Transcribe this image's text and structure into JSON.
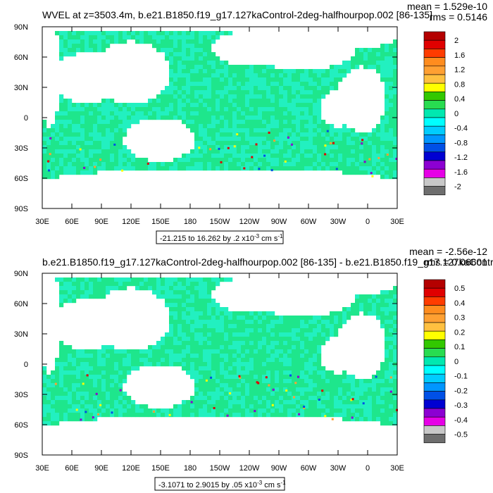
{
  "chart_data": [
    {
      "type": "heatmap",
      "title": "WVEL at z=3503.4m, b.e21.B1850.f19_g17.127kaControl-2deg-halfhourpop.002 [86-135]",
      "stats": {
        "mean": "mean = 1.529e-10",
        "rms": "rms = 0.5146"
      },
      "x_ticks": [
        "30E",
        "60E",
        "90E",
        "120E",
        "150E",
        "180",
        "150W",
        "120W",
        "90W",
        "60W",
        "30W",
        "0",
        "30E"
      ],
      "y_ticks": [
        "90N",
        "60N",
        "30N",
        "0",
        "30S",
        "60S",
        "90S"
      ],
      "range_label": {
        "text": "-21.215 to 16.262 by .2 x10",
        "exp": "-3",
        "unit": " cm s",
        "unit_exp": "-1"
      },
      "colorbar_labels": [
        "2",
        "1.6",
        "1.2",
        "0.8",
        "0.4",
        "0",
        "-0.4",
        "-0.8",
        "-1.2",
        "-1.6",
        "-2"
      ]
    },
    {
      "type": "heatmap",
      "title": "b.e21.B1850.f19_g17.127kaControl-2deg-halfhourpop.002 [86-135] - b.e21.B1850.f19_g17.127kaControl",
      "stats": {
        "mean": "mean = -2.56e-12",
        "rms": "rms = 0.06601"
      },
      "x_ticks": [
        "30E",
        "60E",
        "90E",
        "120E",
        "150E",
        "180",
        "150W",
        "120W",
        "90W",
        "60W",
        "30W",
        "0",
        "30E"
      ],
      "y_ticks": [
        "90N",
        "60N",
        "30N",
        "0",
        "30S",
        "60S",
        "90S"
      ],
      "range_label": {
        "text": "-3.1071 to 2.9015 by .05 x10",
        "exp": "-3",
        "unit": " cm s",
        "unit_exp": "-1"
      },
      "colorbar_labels": [
        "0.5",
        "0.4",
        "0.3",
        "0.2",
        "0.1",
        "0",
        "-0.1",
        "-0.2",
        "-0.3",
        "-0.4",
        "-0.5"
      ]
    }
  ],
  "colors": {
    "palette": [
      "#b40000",
      "#e00000",
      "#ff3c00",
      "#ff8c1e",
      "#ffa032",
      "#ffc040",
      "#ffff00",
      "#32c800",
      "#28dc50",
      "#00e8b0",
      "#00ffff",
      "#00ccff",
      "#0096ff",
      "#0050e6",
      "#0000d2",
      "#8c00d2",
      "#e600e6",
      "#c8c8c8",
      "#6e6e6e"
    ],
    "ocean_main": "#1ee68c",
    "ocean_alt": "#22f0c0"
  }
}
